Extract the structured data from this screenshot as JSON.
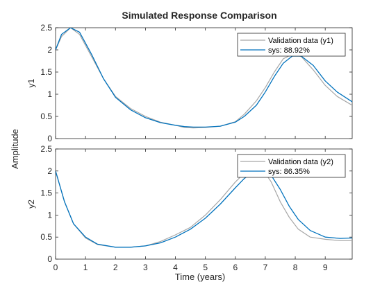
{
  "chart_data": {
    "type": "line",
    "title": "Simulated Response Comparison",
    "xlabel": "Time (years)",
    "ylabel": "Amplitude",
    "xlim": [
      0,
      9.9
    ],
    "xticks": [
      0,
      1,
      2,
      3,
      4,
      5,
      6,
      7,
      8,
      9
    ],
    "grid": false,
    "colors": {
      "validation": "#a6a6a6",
      "model": "#0072bd",
      "axis": "#262626"
    },
    "panels": [
      {
        "ylabel": "y1",
        "ylim": [
          0,
          2.5
        ],
        "yticks": [
          0,
          0.5,
          1,
          1.5,
          2,
          2.5
        ],
        "legend_position": "top-right",
        "series": [
          {
            "name": "Validation data (y1)",
            "x": [
              0,
              0.2,
              0.5,
              0.8,
              1.2,
              1.6,
              2,
              2.5,
              3,
              3.5,
              4,
              4.3,
              4.6,
              5,
              5.5,
              6,
              6.3,
              6.7,
              7,
              7.3,
              7.6,
              7.9,
              8.2,
              8.6,
              9,
              9.4,
              9.9
            ],
            "y": [
              2.0,
              2.3,
              2.5,
              2.35,
              1.85,
              1.35,
              0.95,
              0.68,
              0.5,
              0.37,
              0.3,
              0.25,
              0.24,
              0.25,
              0.28,
              0.38,
              0.55,
              0.85,
              1.15,
              1.5,
              1.8,
              1.9,
              1.85,
              1.55,
              1.2,
              0.95,
              0.75
            ]
          },
          {
            "name": "sys: 88.92%",
            "x": [
              0,
              0.2,
              0.5,
              0.8,
              1.2,
              1.6,
              2,
              2.5,
              3,
              3.5,
              4,
              4.3,
              4.6,
              5,
              5.5,
              6,
              6.3,
              6.7,
              7,
              7.3,
              7.6,
              7.9,
              8.2,
              8.6,
              9,
              9.4,
              9.9
            ],
            "y": [
              2.0,
              2.35,
              2.5,
              2.4,
              1.9,
              1.35,
              0.93,
              0.65,
              0.47,
              0.36,
              0.3,
              0.27,
              0.26,
              0.26,
              0.28,
              0.37,
              0.5,
              0.75,
              1.05,
              1.4,
              1.7,
              1.86,
              1.86,
              1.65,
              1.3,
              1.05,
              0.83
            ]
          }
        ]
      },
      {
        "ylabel": "y2",
        "ylim": [
          0,
          2.5
        ],
        "yticks": [
          0,
          0.5,
          1,
          1.5,
          2,
          2.5
        ],
        "legend_position": "top-right",
        "series": [
          {
            "name": "Validation data (y2)",
            "x": [
              0,
              0.3,
              0.6,
              1,
              1.4,
              2,
              2.5,
              3,
              3.5,
              4,
              4.5,
              5,
              5.5,
              6,
              6.3,
              6.6,
              6.9,
              7.2,
              7.5,
              7.8,
              8.1,
              8.5,
              9,
              9.5,
              9.9
            ],
            "y": [
              2.0,
              1.3,
              0.8,
              0.48,
              0.33,
              0.27,
              0.27,
              0.3,
              0.4,
              0.55,
              0.72,
              1.0,
              1.35,
              1.75,
              1.95,
              2.1,
              2.05,
              1.75,
              1.3,
              0.95,
              0.68,
              0.5,
              0.45,
              0.42,
              0.42
            ]
          },
          {
            "name": "sys: 86.35%",
            "x": [
              0,
              0.3,
              0.6,
              1,
              1.4,
              2,
              2.5,
              3,
              3.5,
              4,
              4.5,
              5,
              5.5,
              6,
              6.3,
              6.6,
              6.9,
              7.2,
              7.5,
              7.8,
              8.1,
              8.5,
              9,
              9.5,
              9.9
            ],
            "y": [
              2.0,
              1.3,
              0.8,
              0.5,
              0.34,
              0.27,
              0.27,
              0.3,
              0.37,
              0.5,
              0.68,
              0.93,
              1.25,
              1.62,
              1.83,
              1.97,
              2.02,
              1.9,
              1.58,
              1.2,
              0.9,
              0.65,
              0.5,
              0.47,
              0.48
            ]
          }
        ]
      }
    ]
  }
}
